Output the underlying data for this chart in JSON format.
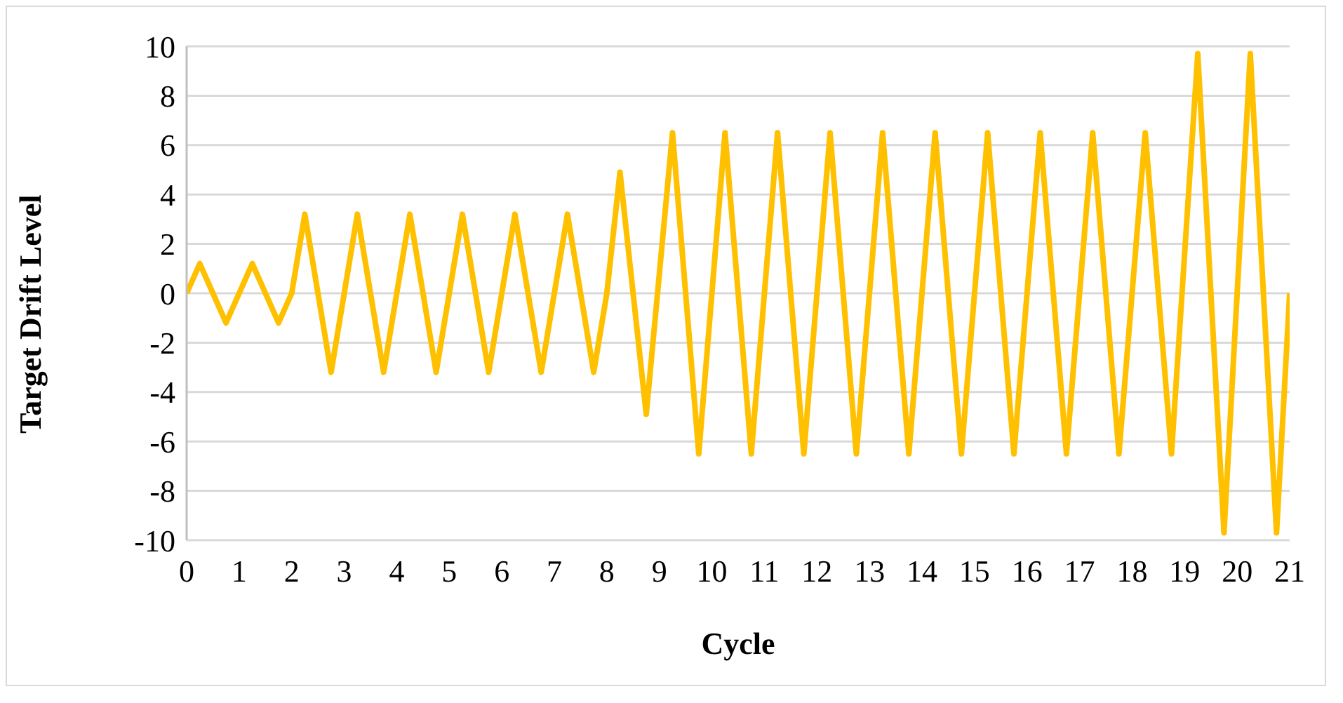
{
  "chart_data": {
    "type": "line",
    "xlabel": "Cycle",
    "ylabel": "Target Drift Level",
    "x": [
      0,
      0.25,
      0.75,
      1.25,
      1.75,
      2,
      2.25,
      2.75,
      3.25,
      3.75,
      4.25,
      4.75,
      5.25,
      5.75,
      6.25,
      6.75,
      7.25,
      7.75,
      8,
      8.25,
      8.75,
      9.25,
      9.75,
      10.25,
      10.75,
      11.25,
      11.75,
      12.25,
      12.75,
      13.25,
      13.75,
      14.25,
      14.75,
      15.25,
      15.75,
      16.25,
      16.75,
      17.25,
      17.75,
      18.25,
      18.75,
      19.25,
      19.75,
      20.25,
      20.75,
      21
    ],
    "series": [
      {
        "color": "#ffc000",
        "values": [
          0,
          1.2,
          -1.2,
          1.2,
          -1.2,
          0,
          3.2,
          -3.2,
          3.2,
          -3.2,
          3.2,
          -3.2,
          3.2,
          -3.2,
          3.2,
          -3.2,
          3.2,
          -3.2,
          0,
          4.9,
          -4.9,
          6.5,
          -6.5,
          6.5,
          -6.5,
          6.5,
          -6.5,
          6.5,
          -6.5,
          6.5,
          -6.5,
          6.5,
          -6.5,
          6.5,
          -6.5,
          6.5,
          -6.5,
          6.5,
          -6.5,
          6.5,
          -6.5,
          9.7,
          -9.7,
          9.7,
          -9.7,
          0
        ]
      }
    ],
    "xlim": [
      0,
      21
    ],
    "xticks": [
      0,
      1,
      2,
      3,
      4,
      5,
      6,
      7,
      8,
      9,
      10,
      11,
      12,
      13,
      14,
      15,
      16,
      17,
      18,
      19,
      20,
      21
    ],
    "ylim": [
      -10,
      10
    ],
    "yticks": [
      -10,
      -8,
      -6,
      -4,
      -2,
      0,
      2,
      4,
      6,
      8,
      10
    ],
    "grid": "y",
    "legend": false,
    "marker": "none",
    "line_style": "solid"
  }
}
